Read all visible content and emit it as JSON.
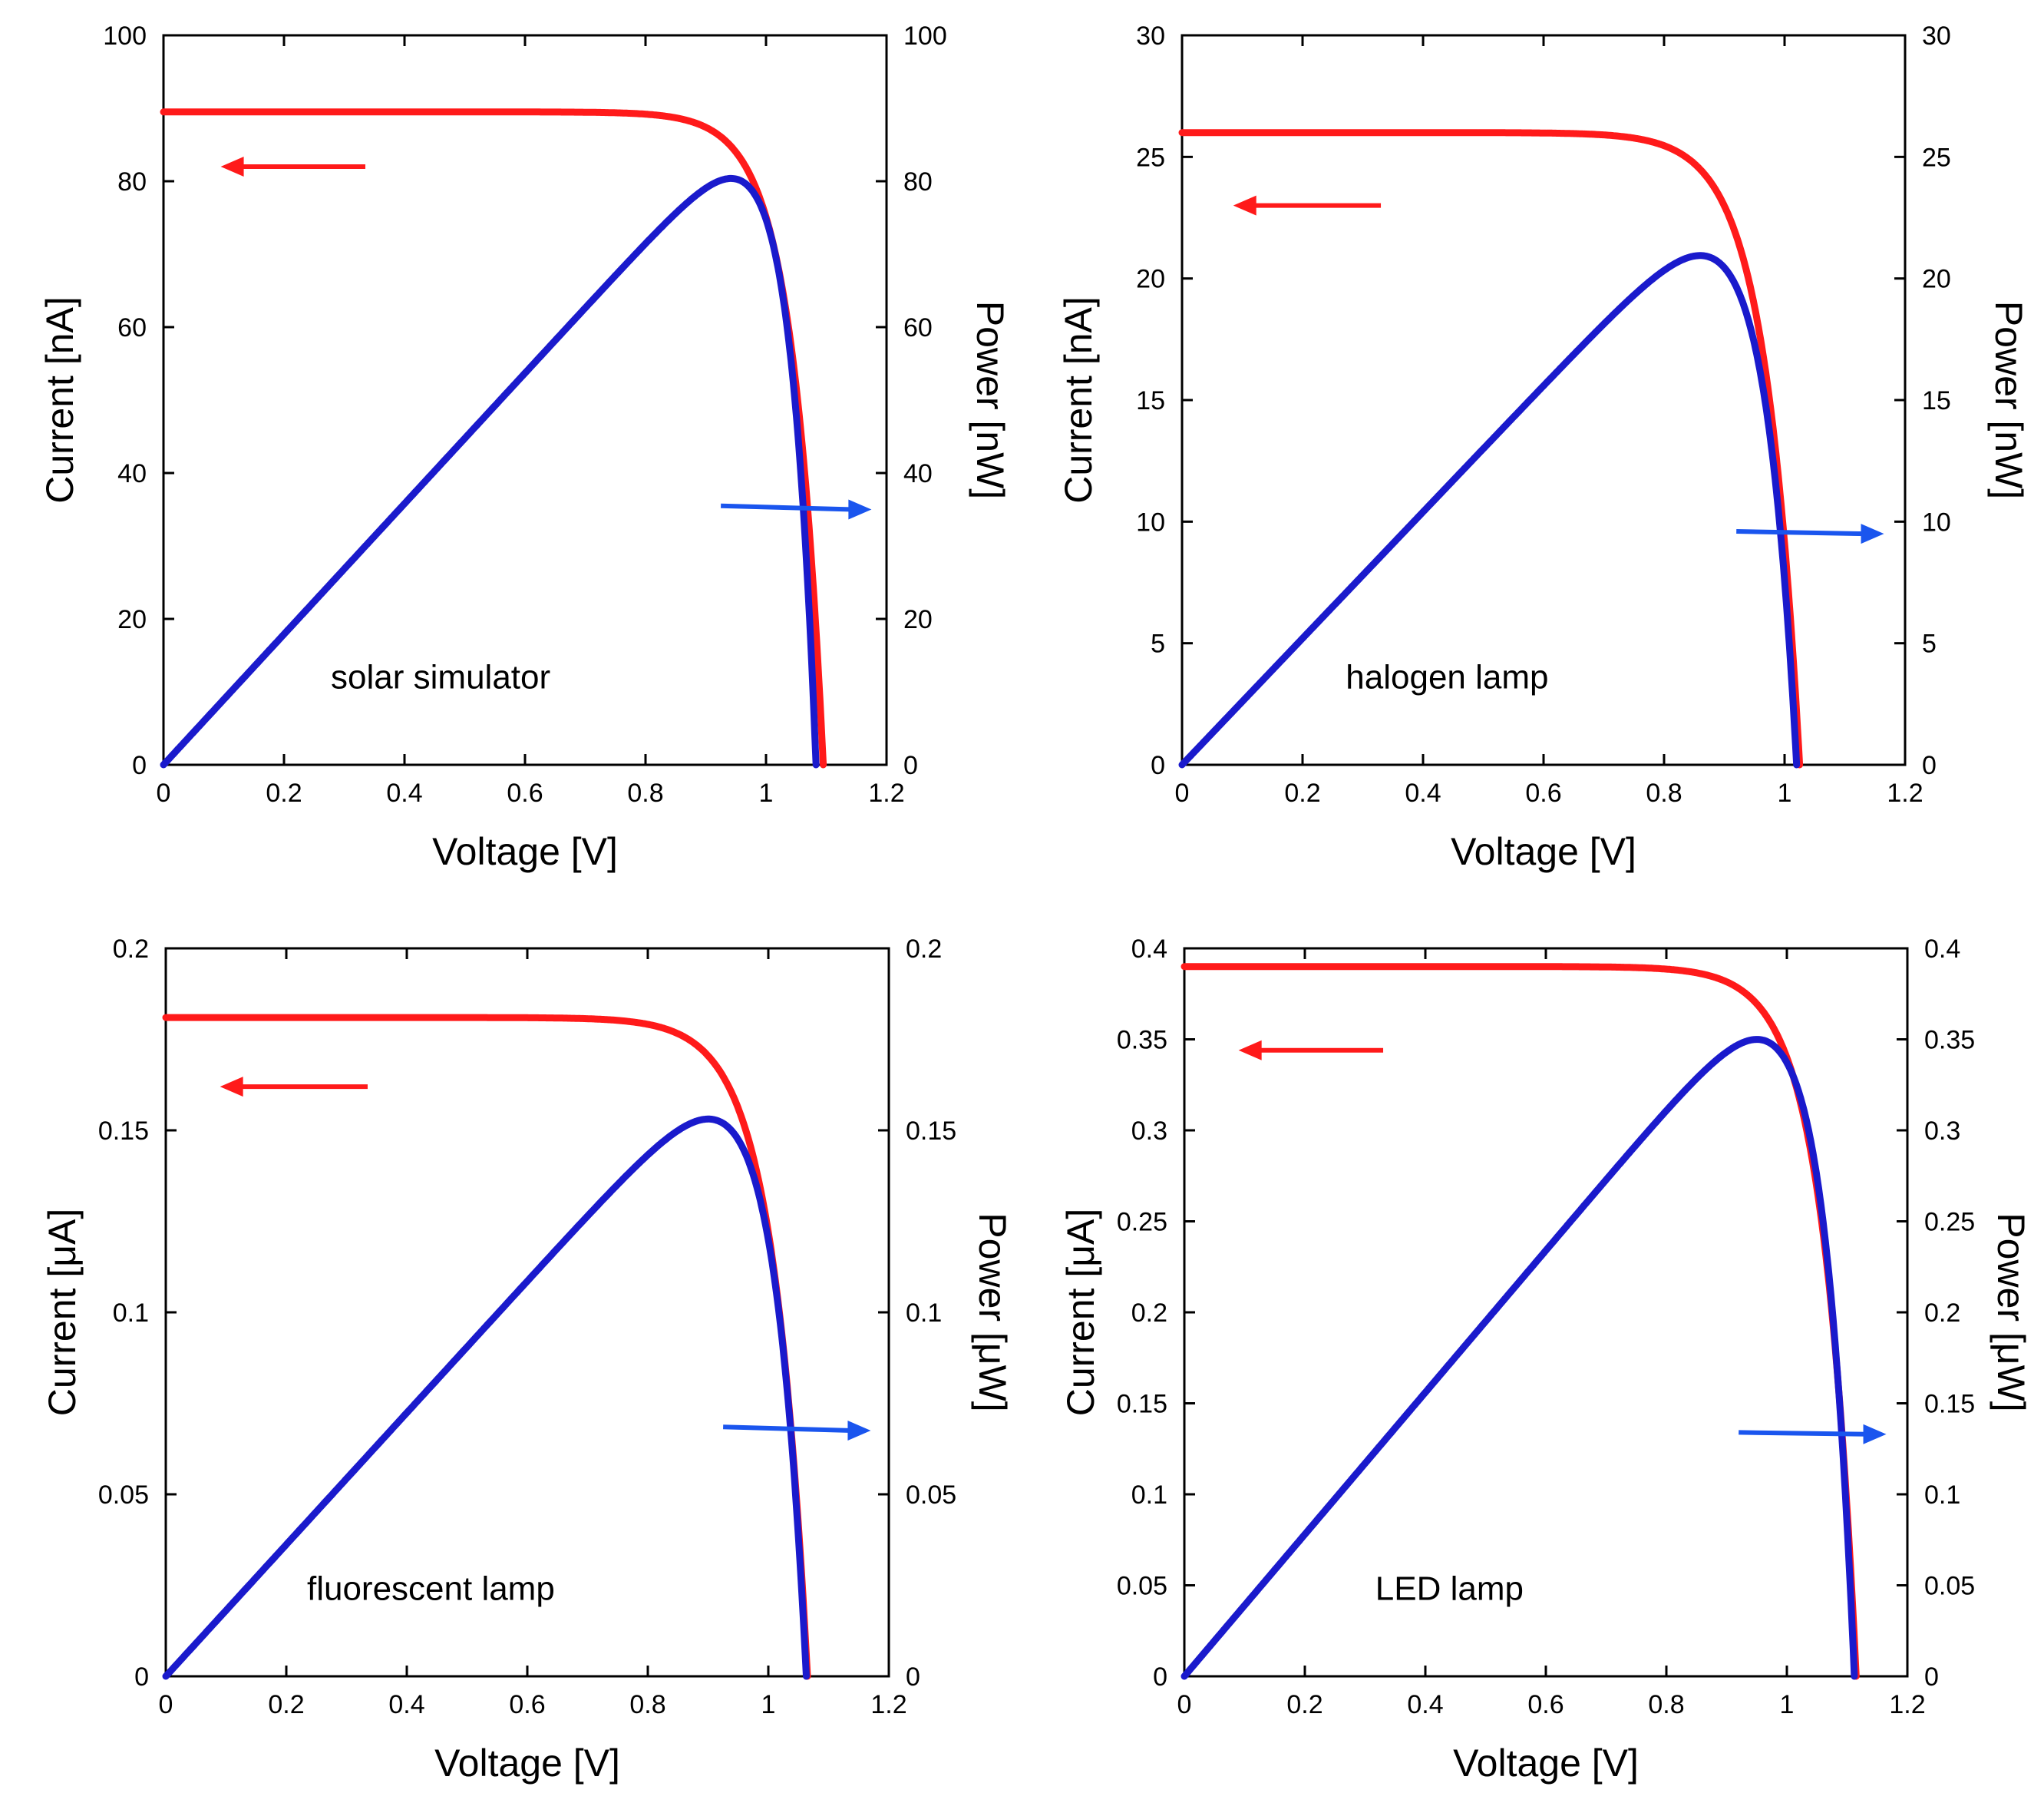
{
  "chart_data": [
    {
      "type": "line",
      "annotation": "solar simulator",
      "xlabel": "Voltage [V]",
      "ylabel_left": "Current [nA]",
      "ylabel_right": "Power [nW]",
      "xlim": [
        0,
        1.2
      ],
      "ylim_left": [
        0,
        100
      ],
      "ylim_right": [
        0,
        100
      ],
      "xticks": [
        "0",
        "0.2",
        "0.4",
        "0.6",
        "0.8",
        "1",
        "1.2"
      ],
      "yticks_left": [
        "0",
        "20",
        "40",
        "60",
        "80",
        "100"
      ],
      "yticks_right": [
        "0",
        "20",
        "40",
        "60",
        "80",
        "100"
      ],
      "series": [
        {
          "name": "Current",
          "axis": "left",
          "color": "#ff1a1a",
          "params": {
            "isc": 89.5,
            "voc": 1.095,
            "n": 0.052
          }
        },
        {
          "name": "Power",
          "axis": "right",
          "color": "#1a1acc",
          "params": {
            "isc": 89.5,
            "voc": 1.083,
            "n": 0.046
          }
        }
      ],
      "arrows": [
        {
          "points_to": "left",
          "color": "#ff1a1a",
          "x": [
            0.335,
            0.095
          ],
          "y": [
            82,
            82
          ],
          "axis": "left"
        },
        {
          "points_to": "right",
          "color": "#1a55ee",
          "x": [
            0.925,
            1.175
          ],
          "y": [
            35.5,
            35
          ],
          "axis": "left"
        }
      ]
    },
    {
      "type": "line",
      "annotation": "halogen lamp",
      "xlabel": "Voltage [V]",
      "ylabel_left": "Current [nA]",
      "ylabel_right": "Power [nW]",
      "xlim": [
        0,
        1.2
      ],
      "ylim_left": [
        0,
        30
      ],
      "ylim_right": [
        0,
        30
      ],
      "xticks": [
        "0",
        "0.2",
        "0.4",
        "0.6",
        "0.8",
        "1",
        "1.2"
      ],
      "yticks_left": [
        "0",
        "5",
        "10",
        "15",
        "20",
        "25",
        "30"
      ],
      "yticks_right": [
        "0",
        "5",
        "10",
        "15",
        "20",
        "25",
        "30"
      ],
      "series": [
        {
          "name": "Current",
          "axis": "left",
          "color": "#ff1a1a",
          "params": {
            "isc": 26.0,
            "voc": 1.025,
            "n": 0.058
          }
        },
        {
          "name": "Power",
          "axis": "right",
          "color": "#1a1acc",
          "params": {
            "isc": 26.0,
            "voc": 1.02,
            "n": 0.058
          }
        }
      ],
      "arrows": [
        {
          "points_to": "left",
          "color": "#ff1a1a",
          "x": [
            0.33,
            0.085
          ],
          "y": [
            23.0,
            23.0
          ],
          "axis": "left"
        },
        {
          "points_to": "right",
          "color": "#1a55ee",
          "x": [
            0.92,
            1.165
          ],
          "y": [
            9.6,
            9.5
          ],
          "axis": "left"
        }
      ]
    },
    {
      "type": "line",
      "annotation": "fluorescent lamp",
      "xlabel": "Voltage [V]",
      "ylabel_left": "Current [μA]",
      "ylabel_right": "Power [μW]",
      "xlim": [
        0,
        1.2
      ],
      "ylim_left": [
        0,
        0.2
      ],
      "ylim_right": [
        0,
        0.2
      ],
      "xticks": [
        "0",
        "0.2",
        "0.4",
        "0.6",
        "0.8",
        "1",
        "1.2"
      ],
      "yticks_left": [
        "0",
        "0.05",
        "0.1",
        "0.15",
        "0.2"
      ],
      "yticks_right": [
        "0",
        "0.05",
        "0.1",
        "0.15",
        "0.2"
      ],
      "series": [
        {
          "name": "Current",
          "axis": "left",
          "color": "#ff1a1a",
          "params": {
            "isc": 0.181,
            "voc": 1.065,
            "n": 0.058
          }
        },
        {
          "name": "Power",
          "axis": "right",
          "color": "#1a1acc",
          "params": {
            "isc": 0.181,
            "voc": 1.063,
            "n": 0.058
          }
        }
      ],
      "arrows": [
        {
          "points_to": "left",
          "color": "#ff1a1a",
          "x": [
            0.335,
            0.09
          ],
          "y": [
            0.162,
            0.162
          ],
          "axis": "left"
        },
        {
          "points_to": "right",
          "color": "#1a55ee",
          "x": [
            0.925,
            1.17
          ],
          "y": [
            0.0685,
            0.0675
          ],
          "axis": "left"
        }
      ]
    },
    {
      "type": "line",
      "annotation": "LED lamp",
      "xlabel": "Voltage [V]",
      "ylabel_left": "Current [μA]",
      "ylabel_right": "Power [μW]",
      "xlim": [
        0,
        1.2
      ],
      "ylim_left": [
        0,
        0.4
      ],
      "ylim_right": [
        0,
        0.4
      ],
      "xticks": [
        "0",
        "0.2",
        "0.4",
        "0.6",
        "0.8",
        "1",
        "1.2"
      ],
      "yticks_left": [
        "0",
        "0.05",
        "0.1",
        "0.15",
        "0.2",
        "0.25",
        "0.3",
        "0.35",
        "0.4"
      ],
      "yticks_right": [
        "0",
        "0.05",
        "0.1",
        "0.15",
        "0.2",
        "0.25",
        "0.3",
        "0.35",
        "0.4"
      ],
      "series": [
        {
          "name": "Current",
          "axis": "left",
          "color": "#ff1a1a",
          "params": {
            "isc": 0.39,
            "voc": 1.115,
            "n": 0.056
          }
        },
        {
          "name": "Power",
          "axis": "right",
          "color": "#1a1acc",
          "params": {
            "isc": 0.39,
            "voc": 1.112,
            "n": 0.056
          }
        }
      ],
      "arrows": [
        {
          "points_to": "left",
          "color": "#ff1a1a",
          "x": [
            0.33,
            0.09
          ],
          "y": [
            0.344,
            0.344
          ],
          "axis": "left"
        },
        {
          "points_to": "right",
          "color": "#1a55ee",
          "x": [
            0.92,
            1.165
          ],
          "y": [
            0.134,
            0.133
          ],
          "axis": "left"
        }
      ]
    }
  ]
}
